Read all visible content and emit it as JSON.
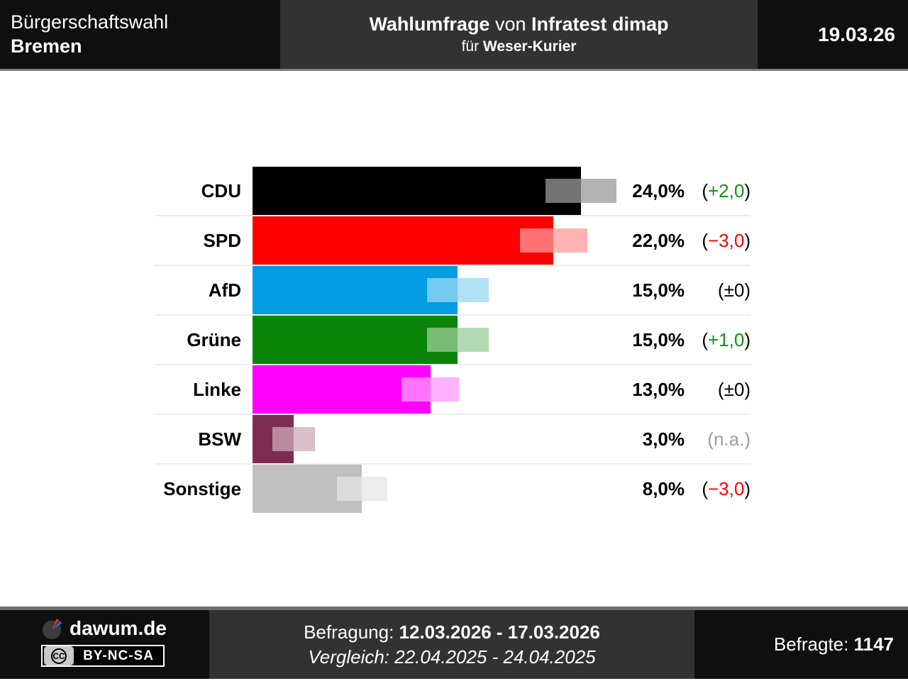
{
  "header": {
    "election": {
      "line1": "Bürgerschaftswahl",
      "line2": "Bremen"
    },
    "survey": {
      "title": "Wahlumfrage",
      "connector": " von ",
      "institute": "Infratest dimap",
      "for_prefix": "für ",
      "client": "Weser-Kurier"
    },
    "date": "19.03.26"
  },
  "chart_data": {
    "type": "bar",
    "orientation": "horizontal",
    "title": "Wahlumfrage von Infratest dimap für Weser-Kurier",
    "subtitle": "Bürgerschaftswahl Bremen, 19.03.26",
    "unit": "percent",
    "xlim": [
      0,
      26
    ],
    "grid": false,
    "legend": "none",
    "categories": [
      "CDU",
      "SPD",
      "AfD",
      "Grüne",
      "Linke",
      "BSW",
      "Sonstige"
    ],
    "values": [
      24.0,
      22.0,
      15.0,
      15.0,
      13.0,
      3.0,
      8.0
    ],
    "changes_vs_previous": [
      2.0,
      -3.0,
      0,
      1.0,
      0,
      null,
      -3.0
    ],
    "error_margins": [
      2.6,
      2.45,
      2.25,
      2.25,
      2.1,
      1.55,
      1.85
    ],
    "bar_colors": [
      "#000000",
      "#ff0000",
      "#009de2",
      "#0a850a",
      "#ff00ff",
      "#7e2d50",
      "#c0c0c0"
    ]
  },
  "chrome": {
    "paren_open": "(",
    "paren_close": ")"
  },
  "rows": [
    {
      "party": "CDU",
      "value_label": "24,0%",
      "change_label": "+2,0",
      "change_color": "#0f940f",
      "paren_color": "#000000",
      "bar_color": "#000000",
      "overlay_out_color": "#b3b3b3",
      "bar_pct": 24.0,
      "margin_pct": 2.6
    },
    {
      "party": "SPD",
      "value_label": "22,0%",
      "change_label": "−3,0",
      "change_color": "#ff0000",
      "paren_color": "#000000",
      "bar_color": "#ff0000",
      "overlay_out_color": "#ffb3b3",
      "bar_pct": 22.0,
      "margin_pct": 2.45
    },
    {
      "party": "AfD",
      "value_label": "15,0%",
      "change_label": "±0",
      "change_color": "#000000",
      "paren_color": "#000000",
      "bar_color": "#009de2",
      "overlay_out_color": "#b3e1f6",
      "bar_pct": 15.0,
      "margin_pct": 2.25
    },
    {
      "party": "Grüne",
      "value_label": "15,0%",
      "change_label": "+1,0",
      "change_color": "#0f940f",
      "paren_color": "#000000",
      "bar_color": "#0a850a",
      "overlay_out_color": "#b3dab3",
      "bar_pct": 15.0,
      "margin_pct": 2.25
    },
    {
      "party": "Linke",
      "value_label": "13,0%",
      "change_label": "±0",
      "change_color": "#000000",
      "paren_color": "#000000",
      "bar_color": "#ff00ff",
      "overlay_out_color": "#ffb3ff",
      "bar_pct": 13.0,
      "margin_pct": 2.1
    },
    {
      "party": "BSW",
      "value_label": "3,0%",
      "change_label": "n.a.",
      "change_color": "#9e9e9e",
      "paren_color": "#9e9e9e",
      "bar_color": "#7e2d50",
      "overlay_out_color": "#d8c0cb",
      "bar_pct": 3.0,
      "margin_pct": 1.55
    },
    {
      "party": "Sonstige",
      "value_label": "8,0%",
      "change_label": "−3,0",
      "change_color": "#ff0000",
      "paren_color": "#000000",
      "bar_color": "#c0c0c0",
      "overlay_out_color": "#ececec",
      "bar_pct": 8.0,
      "margin_pct": 1.85
    }
  ],
  "footer": {
    "brand": "dawum.de",
    "cc_mark": "CC",
    "license": "BY-NC-SA",
    "survey_period_label": "Befragung: ",
    "survey_period": "12.03.2026 - 17.03.2026",
    "comparison_line": "Vergleich: 22.04.2025 - 24.04.2025",
    "respondents_label": "Befragte: ",
    "respondents": "1147"
  },
  "theme": {
    "panel_dark": "#0f0f0f",
    "panel_mid": "#323232",
    "divider": "#ededed",
    "header_border": "#7d7d7d",
    "footer_border": "#6f6f6f",
    "positive_green": "#0f940f",
    "negative_red": "#ff0000",
    "na_gray": "#9e9e9e"
  }
}
